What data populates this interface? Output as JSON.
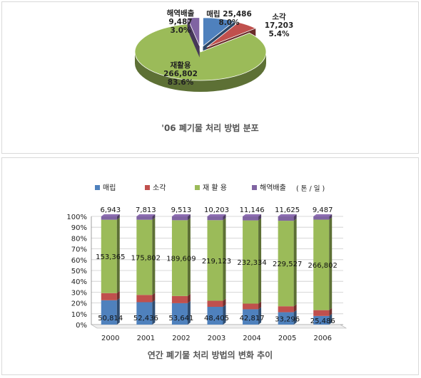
{
  "chart_data": [
    {
      "type": "pie",
      "title": "'06 폐기물 처리 방법 분포",
      "slices": [
        {
          "name": "매립",
          "value": 25486,
          "label_value": "25,486",
          "percent": "8.0%",
          "color": "#4f81bd"
        },
        {
          "name": "소각",
          "value": 17203,
          "label_value": "17,203",
          "percent": "5.4%",
          "color": "#c0504d"
        },
        {
          "name": "재활용",
          "value": 266802,
          "label_value": "266,802",
          "percent": "83.6%",
          "color": "#9bbb59"
        },
        {
          "name": "해역배출",
          "value": 9487,
          "label_value": "9,487",
          "percent": "3.0%",
          "color": "#8064a2"
        }
      ]
    },
    {
      "type": "bar",
      "stacked": "percent",
      "title": "연간 폐기물 처리 방법의 변화 추이",
      "unit": "( 톤 / 일 )",
      "categories": [
        "2000",
        "2001",
        "2002",
        "2003",
        "2004",
        "2005",
        "2006"
      ],
      "ylim": [
        0,
        100
      ],
      "yticks": [
        "0%",
        "10%",
        "20%",
        "30%",
        "40%",
        "50%",
        "60%",
        "70%",
        "80%",
        "90%",
        "100%"
      ],
      "legend_position": "top",
      "series": [
        {
          "name": "매립",
          "color": "#4f81bd",
          "values": [
            50814,
            52436,
            53641,
            48405,
            42817,
            33296,
            25486
          ],
          "labels": [
            "50,814",
            "52,436",
            "53,641",
            "48,405",
            "42,817",
            "33,296",
            "25,486"
          ]
        },
        {
          "name": "소각",
          "color": "#c0504d",
          "values": [
            15000,
            17000,
            18000,
            16500,
            15800,
            16000,
            17203
          ],
          "labels": [
            "",
            "",
            "",
            "",
            "",
            "",
            ""
          ]
        },
        {
          "name": "재 활 용",
          "color": "#9bbb59",
          "values": [
            153365,
            175802,
            189609,
            219123,
            232334,
            229527,
            266802
          ],
          "labels": [
            "153,365",
            "175,802",
            "189,609",
            "219,123",
            "232,334",
            "229,527",
            "266,802"
          ]
        },
        {
          "name": "해역배출",
          "color": "#8064a2",
          "values": [
            6943,
            7813,
            9513,
            10203,
            11146,
            11625,
            9487
          ],
          "labels": [
            "6,943",
            "7,813",
            "9,513",
            "10,203",
            "11,146",
            "11,625",
            "9,487"
          ]
        }
      ]
    }
  ]
}
